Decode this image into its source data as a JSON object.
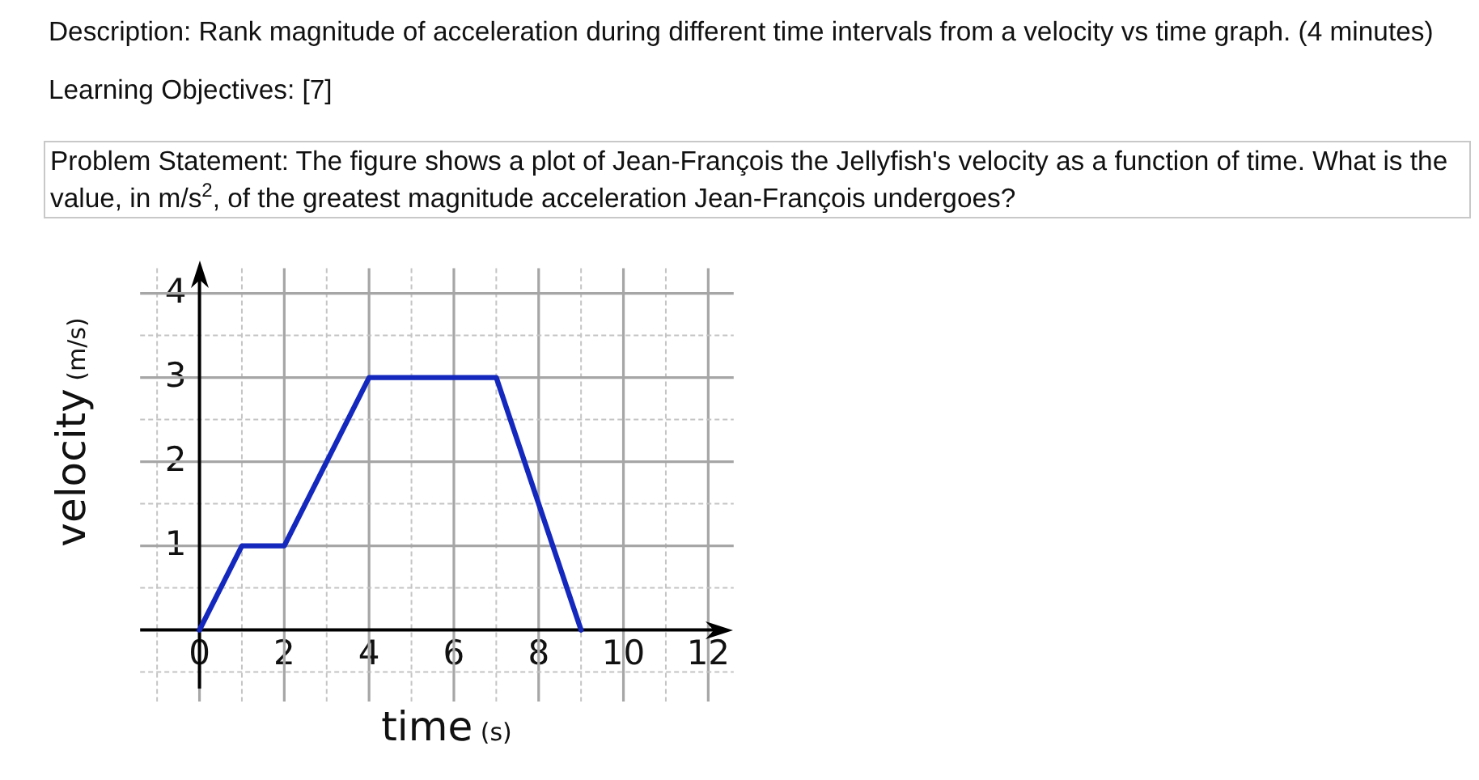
{
  "chart_data": {
    "type": "line",
    "annotations": [
      "Description: Rank magnitude of acceleration during different time intervals from a velocity vs time graph. (4 minutes)",
      "Learning Objectives: [7]",
      "Problem Statement: The figure shows a plot of Jean-François the Jellyfish's velocity as a function of time. What is the value, in m/s$^{2}$, of the greatest magnitude acceleration Jean-François undergoes?"
    ],
    "xlabel": "time (s)",
    "ylabel": "velocity (m/s)",
    "x": [
      0,
      1,
      2,
      4,
      7,
      9
    ],
    "values": [
      0,
      1,
      1,
      3,
      3,
      0
    ],
    "color": "#1428be",
    "xlim": [
      -1.4,
      12.6
    ],
    "ylim": [
      -0.85,
      4.3
    ],
    "xticks": [
      {
        "value": -1,
        "label": null
      },
      0,
      {
        "value": 1,
        "label": null
      },
      2,
      {
        "value": 3,
        "label": null
      },
      4,
      {
        "value": 5,
        "label": null
      },
      6,
      {
        "value": 7,
        "label": null
      },
      8,
      {
        "value": 9,
        "label": null
      },
      10,
      {
        "value": 11,
        "label": null
      },
      12
    ],
    "yticks": [
      {
        "value": -0.5,
        "label": null
      },
      {
        "value": 0.5,
        "label": null
      },
      1,
      {
        "value": 1.5,
        "label": null
      },
      2,
      {
        "value": 2.5,
        "label": null
      },
      3,
      {
        "value": 3.5,
        "label": null
      },
      4
    ],
    "grid": true,
    "legend": false,
    "marker": "none",
    "line_style": "solid"
  }
}
